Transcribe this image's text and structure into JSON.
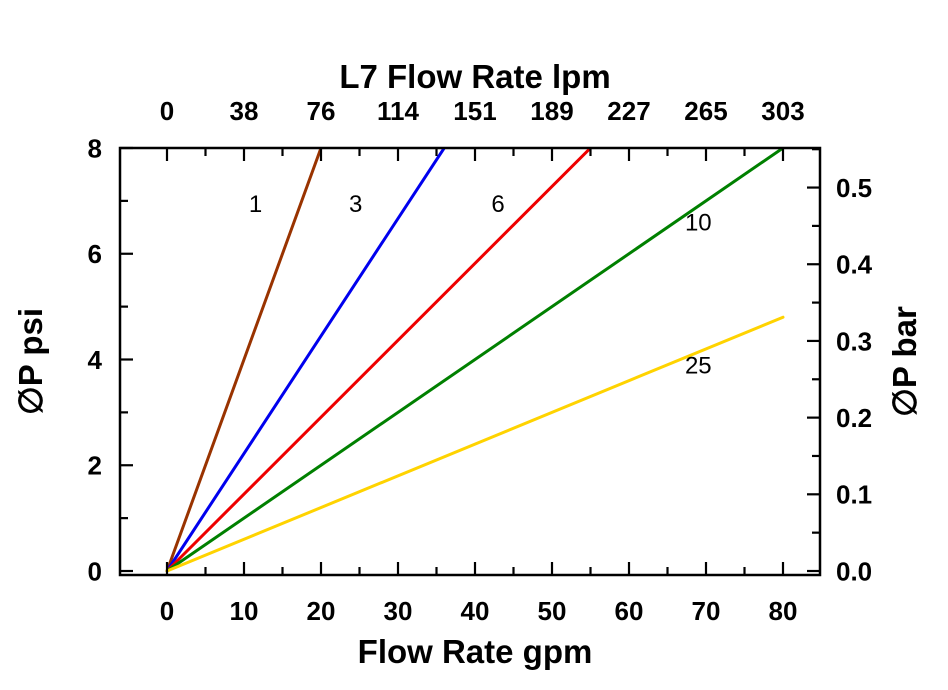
{
  "chart_data": {
    "type": "line",
    "background": "#ffffff",
    "x_range": [
      0,
      80
    ],
    "y_range": [
      0,
      8
    ],
    "axes": {
      "top": {
        "label": "L7 Flow Rate lpm",
        "tick_labels": [
          "0",
          "38",
          "76",
          "114",
          "151",
          "189",
          "227",
          "265",
          "303"
        ]
      },
      "bottom": {
        "label": "Flow Rate gpm",
        "ticks": [
          0,
          10,
          20,
          30,
          40,
          50,
          60,
          70,
          80
        ]
      },
      "left": {
        "label": "∅P psi",
        "ticks": [
          0,
          2,
          4,
          6,
          8
        ]
      },
      "right": {
        "label": "∅P bar",
        "tick_labels": [
          "0.0",
          "0.1",
          "0.2",
          "0.3",
          "0.4",
          "0.5"
        ]
      }
    },
    "series": [
      {
        "name": "1",
        "color": "#993300",
        "points": [
          [
            0,
            0
          ],
          [
            20,
            8
          ]
        ],
        "label_pos": [
          11.5,
          6.95
        ]
      },
      {
        "name": "3",
        "color": "#0000EE",
        "points": [
          [
            0,
            0
          ],
          [
            36,
            8
          ]
        ],
        "label_pos": [
          24.5,
          6.95
        ]
      },
      {
        "name": "6",
        "color": "#EE0000",
        "points": [
          [
            0,
            0
          ],
          [
            55,
            8
          ]
        ],
        "label_pos": [
          43,
          6.95
        ]
      },
      {
        "name": "10",
        "color": "#008000",
        "points": [
          [
            0,
            0
          ],
          [
            80,
            8
          ]
        ],
        "label_pos": [
          69,
          6.6
        ]
      },
      {
        "name": "25",
        "color": "#FFD300",
        "points": [
          [
            0,
            0
          ],
          [
            80,
            4.8
          ]
        ],
        "label_pos": [
          69,
          3.9
        ]
      }
    ]
  }
}
